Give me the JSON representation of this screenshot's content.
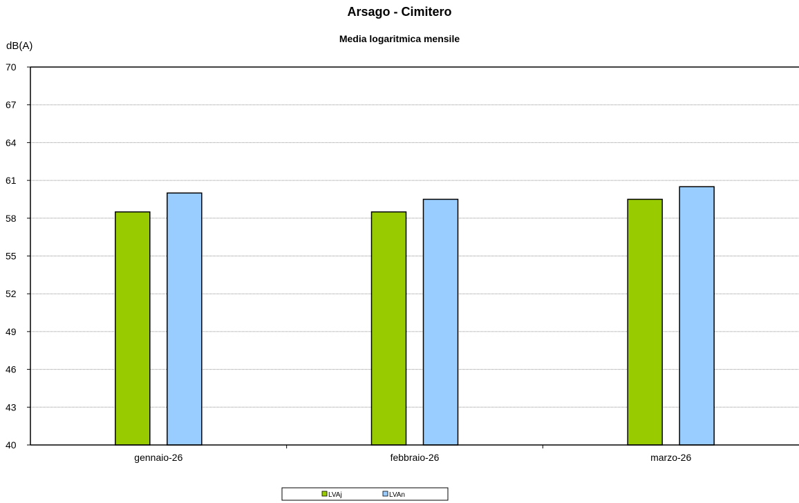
{
  "chart_data": {
    "type": "bar",
    "title": "Arsago - Cimitero",
    "subtitle": "Media logaritmica mensile",
    "ylabel": "dB(A)",
    "xlabel": "",
    "ylim": [
      40,
      70
    ],
    "yticks": [
      "70",
      "67",
      "64",
      "61",
      "58",
      "55",
      "52",
      "49",
      "46",
      "43",
      "40"
    ],
    "ytick_values": [
      70,
      67,
      64,
      61,
      58,
      55,
      52,
      49,
      46,
      43,
      40
    ],
    "categories": [
      "gennaio-26",
      "febbraio-26",
      "marzo-26"
    ],
    "series": [
      {
        "name": "LVAj",
        "color": "#99cc00",
        "values": [
          58.5,
          58.5,
          59.5
        ]
      },
      {
        "name": "LVAn",
        "color": "#99ccff",
        "values": [
          60.0,
          59.5,
          60.5
        ]
      }
    ],
    "grid": true,
    "legend_position": "bottom-center"
  }
}
